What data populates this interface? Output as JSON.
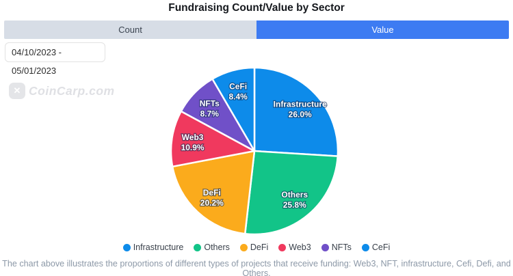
{
  "header": {
    "title": "Fundraising Count/Value by Sector"
  },
  "tabs": {
    "items": [
      {
        "label": "Count",
        "active": false
      },
      {
        "label": "Value",
        "active": true
      }
    ]
  },
  "filters": {
    "date_range": "04/10/2023 - 05/01/2023"
  },
  "watermark": {
    "logo_icon": "coincarp-x-logo",
    "logo_glyph": "✕",
    "text": "CoinCarp.com"
  },
  "chart_data": {
    "type": "pie",
    "title": "Fundraising Count/Value by Sector",
    "categories": [
      "Infrastructure",
      "Others",
      "DeFi",
      "Web3",
      "NFTs",
      "CeFi"
    ],
    "values": [
      26.0,
      25.8,
      20.2,
      10.9,
      8.7,
      8.4
    ],
    "pct_labels": [
      "26.0%",
      "25.8%",
      "20.2%",
      "10.9%",
      "8.7%",
      "8.4%"
    ],
    "unit": "%",
    "colors": [
      "#0d8bea",
      "#12c488",
      "#fbab1c",
      "#f0395e",
      "#7050c8",
      "#0d8bea"
    ],
    "start_angle_deg": 0,
    "direction": "clockwise",
    "slice_border_color": "#ffffff",
    "label_position": "inside",
    "legend_position": "bottom"
  },
  "theme": {
    "tab_active_bg": "#3d7bf2",
    "tab_active_text": "#ffffff",
    "tab_inactive_bg": "#d7dde6",
    "tab_inactive_text": "#3b4450",
    "footer_text_color": "#8c98a7"
  },
  "footer": {
    "note": "The chart above illustrates the proportions of different types of projects that receive funding: Web3, NFT, infrastructure, Cefi, Defi, and Others."
  }
}
